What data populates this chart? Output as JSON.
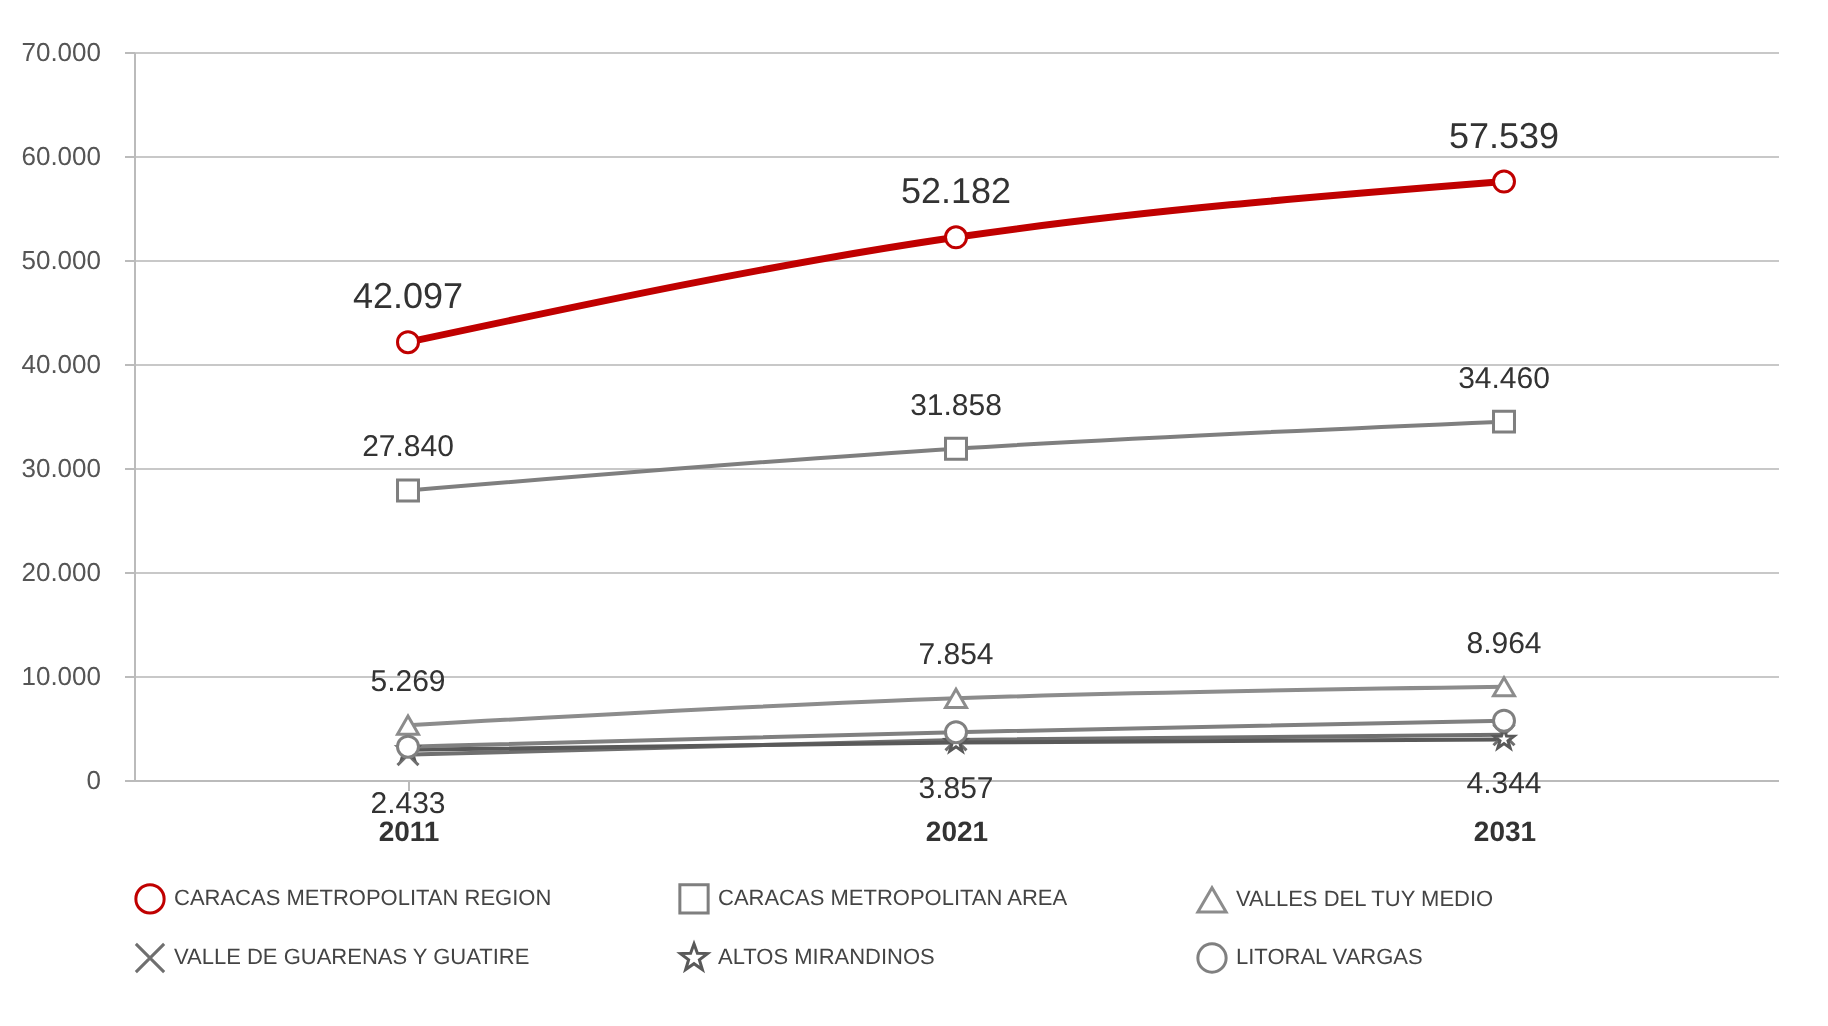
{
  "chart_data": {
    "type": "line",
    "categories": [
      "2011",
      "2021",
      "2031"
    ],
    "series": [
      {
        "name": "CARACAS METROPOLITAN REGION",
        "color": "#c00000",
        "marker": "circle",
        "values": [
          42097,
          52182,
          57539
        ],
        "value_labels": [
          "42.097",
          "52.182",
          "57.539"
        ]
      },
      {
        "name": "CARACAS METROPOLITAN AREA",
        "color": "#7f7f7f",
        "marker": "square",
        "values": [
          27840,
          31858,
          34460
        ],
        "value_labels": [
          "27.840",
          "31.858",
          "34.460"
        ]
      },
      {
        "name": "VALLES DEL TUY MEDIO",
        "color": "#8c8c8c",
        "marker": "triangle",
        "values": [
          5269,
          7854,
          8964
        ],
        "value_labels": [
          "5.269",
          "7.854",
          "8.964"
        ]
      },
      {
        "name": "VALLE DE GUARENAS  Y GUATIRE",
        "color": "#6f6f6f",
        "marker": "cross",
        "values": [
          2433,
          3857,
          4344
        ],
        "value_labels": [
          "2.433",
          "3.857",
          "4.344"
        ]
      },
      {
        "name": "ALTOS MIRANDINOS",
        "color": "#595959",
        "marker": "star",
        "values": [
          2900,
          3600,
          3900
        ]
      },
      {
        "name": "LITORAL VARGAS",
        "color": "#808080",
        "marker": "circle",
        "values": [
          3200,
          4600,
          5700
        ]
      }
    ],
    "ylim": [
      0,
      70000
    ],
    "yticks": [
      0,
      {
        "value": 10000,
        "label": "10.000"
      },
      {
        "value": 20000,
        "label": "20.000"
      },
      {
        "value": 30000,
        "label": "30.000"
      },
      {
        "value": 40000,
        "label": "40.000"
      },
      {
        "value": 50000,
        "label": "50.000"
      },
      {
        "value": 60000,
        "label": "60.000"
      },
      {
        "value": 70000,
        "label": "70.000"
      }
    ],
    "grid": "y",
    "legend": "bottom",
    "line_style": "solid"
  }
}
